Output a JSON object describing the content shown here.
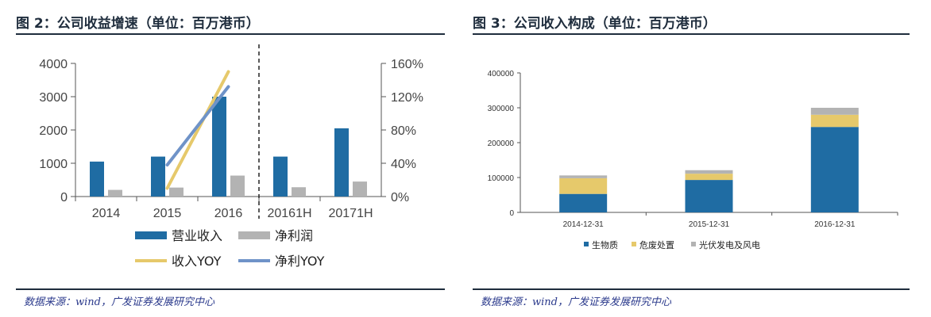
{
  "figures": [
    {
      "title": "图 2：公司收益增速（单位：百万港币）",
      "source": "数据来源：wind，广发证券发展研究中心"
    },
    {
      "title": "图 3：公司收入构成（单位：百万港币）",
      "source": "数据来源：wind，广发证券发展研究中心"
    }
  ],
  "colors": {
    "blue": "#1f6ca3",
    "gray": "#b3b3b3",
    "gold": "#e6c96b",
    "steel": "#6f93c8",
    "rule": "#1f2d3d"
  },
  "chart_data": [
    {
      "type": "bar",
      "categories": [
        "2014",
        "2015",
        "2016",
        "20161H",
        "20171H"
      ],
      "y_left": {
        "ylim": [
          0,
          4000
        ],
        "ticks": [
          "0",
          "1000",
          "2000",
          "3000",
          "4000"
        ]
      },
      "y_right": {
        "ylim": [
          0,
          160
        ],
        "ticks": [
          "0%",
          "40%",
          "80%",
          "120%",
          "160%"
        ]
      },
      "series": [
        {
          "name": "营业收入",
          "kind": "bar",
          "axis": "left",
          "color": "#1f6ca3",
          "values": [
            1050,
            1200,
            3000,
            1200,
            2050
          ]
        },
        {
          "name": "净利润",
          "kind": "bar",
          "axis": "left",
          "color": "#b3b3b3",
          "values": [
            200,
            270,
            630,
            280,
            450
          ]
        },
        {
          "name": "收入YOY",
          "kind": "line",
          "axis": "right",
          "color": "#e6c96b",
          "values": [
            null,
            10,
            150,
            null,
            null
          ]
        },
        {
          "name": "净利YOY",
          "kind": "line",
          "axis": "right",
          "color": "#6f93c8",
          "values": [
            null,
            38,
            132,
            null,
            null
          ]
        }
      ],
      "divider_after": "2016",
      "grid": false,
      "legend_position": "bottom"
    },
    {
      "type": "bar",
      "stacked": true,
      "categories": [
        "2014-12-31",
        "2015-12-31",
        "2016-12-31"
      ],
      "ylim": [
        0,
        400000
      ],
      "ticks": [
        "0",
        "100000",
        "200000",
        "300000",
        "400000"
      ],
      "series": [
        {
          "name": "生物质",
          "color": "#1f6ca3",
          "values": [
            53000,
            93000,
            245000
          ]
        },
        {
          "name": "危废处置",
          "color": "#e6c96b",
          "values": [
            45000,
            18000,
            35000
          ]
        },
        {
          "name": "光伏发电及风电",
          "color": "#b3b3b3",
          "values": [
            8000,
            10000,
            20000
          ]
        }
      ],
      "grid": false,
      "legend_position": "bottom"
    }
  ]
}
